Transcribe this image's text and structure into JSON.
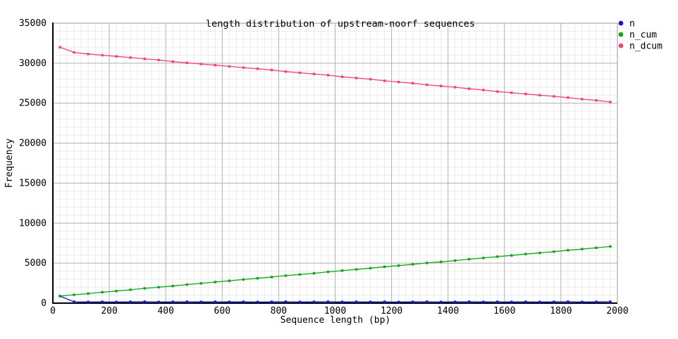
{
  "chart_data": {
    "type": "line",
    "title": "length distribution of upstream-noorf sequences",
    "xlabel": "Sequence length (bp)",
    "ylabel": "Frequency",
    "xlim": [
      0,
      2000
    ],
    "ylim": [
      0,
      35000
    ],
    "x_ticks": [
      0,
      200,
      400,
      600,
      800,
      1000,
      1200,
      1400,
      1600,
      1800,
      2000
    ],
    "y_ticks": [
      0,
      5000,
      10000,
      15000,
      20000,
      25000,
      30000,
      35000
    ],
    "x_minor_step": 25,
    "y_minor_step": 1000,
    "grid": true,
    "legend_position": "top-right-outside",
    "colors": {
      "axis": "#000000",
      "border": "#999999",
      "grid_major": "#b0b0b0",
      "grid_minor": "#ebebeb",
      "background": "#ffffff"
    },
    "x": [
      25,
      75,
      125,
      175,
      225,
      275,
      325,
      375,
      425,
      475,
      525,
      575,
      625,
      675,
      725,
      775,
      825,
      875,
      925,
      975,
      1025,
      1075,
      1125,
      1175,
      1225,
      1275,
      1325,
      1375,
      1425,
      1475,
      1525,
      1575,
      1625,
      1675,
      1725,
      1775,
      1825,
      1875,
      1925,
      1975
    ],
    "series": [
      {
        "name": "n",
        "color": "#1414cc",
        "values": [
          880,
          165,
          150,
          170,
          145,
          160,
          175,
          140,
          155,
          180,
          150,
          165,
          150,
          170,
          145,
          160,
          175,
          140,
          155,
          180,
          150,
          165,
          150,
          170,
          145,
          160,
          175,
          140,
          155,
          180,
          150,
          165,
          150,
          170,
          145,
          160,
          175,
          140,
          155,
          180
        ]
      },
      {
        "name": "n_cum",
        "color": "#12a41c",
        "values": [
          880,
          1045,
          1195,
          1365,
          1510,
          1670,
          1845,
          1985,
          2140,
          2320,
          2470,
          2635,
          2785,
          2955,
          3100,
          3260,
          3435,
          3575,
          3730,
          3910,
          4060,
          4225,
          4375,
          4545,
          4690,
          4850,
          5025,
          5165,
          5320,
          5500,
          5650,
          5815,
          5965,
          6135,
          6280,
          6440,
          6615,
          6755,
          6910,
          7090
        ]
      },
      {
        "name": "n_dcum",
        "color": "#ee4477",
        "values": [
          32000,
          31350,
          31150,
          31000,
          30850,
          30700,
          30550,
          30400,
          30200,
          30050,
          29900,
          29750,
          29600,
          29450,
          29300,
          29150,
          28950,
          28800,
          28650,
          28500,
          28300,
          28150,
          28000,
          27800,
          27650,
          27500,
          27300,
          27150,
          27000,
          26800,
          26650,
          26450,
          26300,
          26150,
          26000,
          25850,
          25700,
          25500,
          25350,
          25150
        ]
      }
    ]
  }
}
